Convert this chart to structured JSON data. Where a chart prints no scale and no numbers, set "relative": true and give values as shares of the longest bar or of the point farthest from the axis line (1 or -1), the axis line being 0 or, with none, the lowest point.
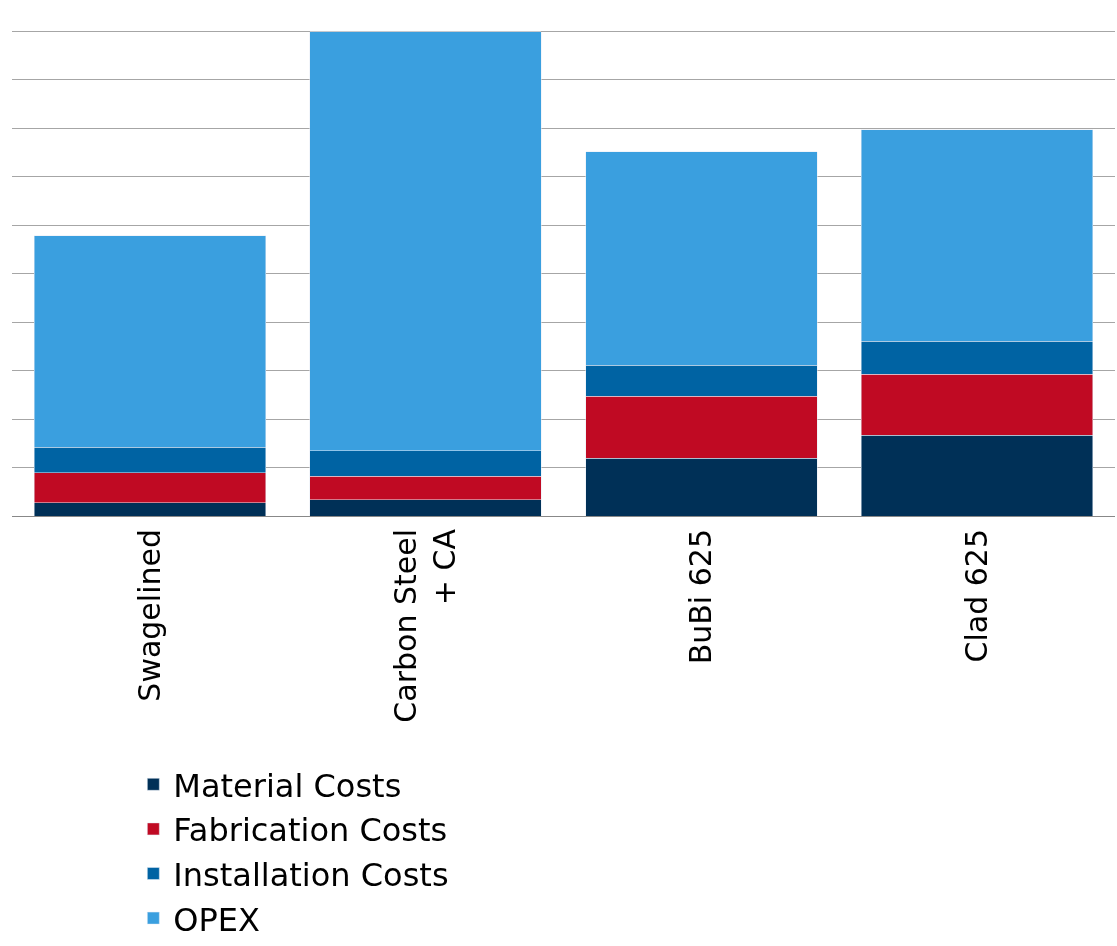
{
  "chart_data": {
    "type": "bar",
    "stacked": true,
    "relative": true,
    "grid": "y",
    "legend": "bottom left",
    "categories": [
      "Swagelined",
      "Carbon Steel\n+ CA",
      "BuBi 625",
      "Clad 625"
    ],
    "series": [
      {
        "name": "Material Costs",
        "color": "#003057",
        "values": [
          0.027,
          0.034,
          0.119,
          0.167
        ]
      },
      {
        "name": "Fabrication Costs",
        "color": "#c00a23",
        "values": [
          0.062,
          0.048,
          0.128,
          0.126
        ]
      },
      {
        "name": "Installation Costs",
        "color": "#0063a3",
        "values": [
          0.053,
          0.053,
          0.064,
          0.068
        ]
      },
      {
        "name": "OPEX",
        "color": "#3a9fdf",
        "values": [
          0.436,
          0.865,
          0.441,
          0.436
        ]
      }
    ]
  }
}
